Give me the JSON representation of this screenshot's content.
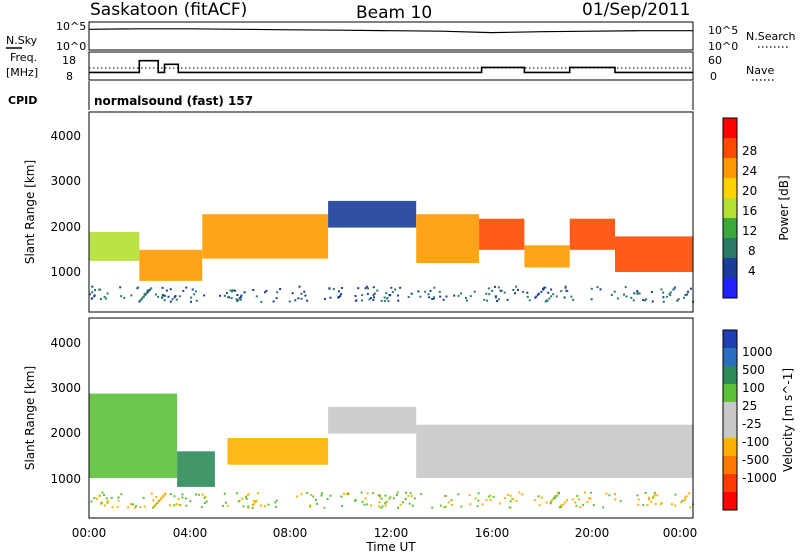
{
  "header": {
    "station": "Saskatoon (fitACF)",
    "beam": "Beam 10",
    "date": "01/Sep/2011"
  },
  "noise_panel": {
    "left_label": "N.Sky",
    "right_label": "N.Search",
    "left_ticks": [
      "10^5",
      "10^0"
    ],
    "right_ticks": [
      "10^5",
      "10^0"
    ]
  },
  "freq_panel": {
    "left_label_1": "Freq.",
    "left_label_2": "[MHz]",
    "left_ticks": [
      "18",
      "8"
    ],
    "right_label": "Nave",
    "right_ticks": [
      "60",
      "0"
    ]
  },
  "cpid_panel": {
    "label": "CPID",
    "text": "normalsound (fast) 157"
  },
  "power_panel": {
    "ylabel": "Slant Range [km]",
    "yticks": [
      "4000",
      "3000",
      "2000",
      "1000"
    ],
    "colorbar_title": "Power [dB]",
    "colorbar_ticks": [
      "28",
      "24",
      "20",
      "16",
      "12",
      "8",
      "4"
    ],
    "colorbar_colors": [
      "#ff0000",
      "#ff4a00",
      "#ff9a00",
      "#ffd200",
      "#b4e034",
      "#3aa83a",
      "#2a7a6a",
      "#1a3d9a",
      "#1f1fff"
    ]
  },
  "velocity_panel": {
    "ylabel": "Slant Range [km]",
    "yticks": [
      "4000",
      "3000",
      "2000",
      "1000"
    ],
    "colorbar_title": "Velocity [m s^-1]",
    "colorbar_ticks": [
      "1000",
      "500",
      "100",
      "25",
      "-25",
      "-100",
      "-500",
      "-1000"
    ],
    "colorbar_colors": [
      "#1f3fb0",
      "#2a6ec0",
      "#2f8a5a",
      "#5cc23a",
      "#c8c8c8",
      "#c8c8c8",
      "#ffb000",
      "#ff7a00",
      "#ff3a00",
      "#ff0000"
    ]
  },
  "time_axis": {
    "xlabel": "Time UT",
    "xticks": [
      "00:00",
      "04:00",
      "08:00",
      "12:00",
      "16:00",
      "20:00",
      "00:00"
    ]
  },
  "chart_data": [
    {
      "type": "line",
      "title": "N.Sky / N.Search noise",
      "xlabel": "Time UT",
      "x_range_hours": [
        0,
        24
      ],
      "ylim_log10": [
        0,
        5
      ],
      "series": [
        {
          "name": "N.Sky",
          "x": [
            0,
            2,
            4,
            6,
            8,
            10,
            12,
            14,
            16,
            18,
            20,
            22,
            24
          ],
          "log10_values": [
            3.9,
            4.0,
            4.0,
            3.9,
            3.8,
            3.7,
            3.6,
            3.5,
            3.2,
            3.4,
            3.5,
            3.6,
            3.6
          ]
        }
      ]
    },
    {
      "type": "line",
      "title": "Freq. [MHz] / Nave",
      "x_range_hours": [
        0,
        24
      ],
      "ylim": [
        8,
        18
      ],
      "series": [
        {
          "name": "Freq.",
          "x": [
            0,
            2.0,
            2.0,
            2.75,
            2.75,
            3.0,
            3.0,
            3.55,
            3.55,
            15.6,
            15.6,
            17.3,
            17.3,
            19.1,
            19.1,
            20.9,
            20.9,
            24
          ],
          "values": [
            10,
            10,
            16.5,
            16.5,
            10,
            10,
            14.5,
            14.5,
            10,
            10,
            12.8,
            12.8,
            10,
            10,
            12.8,
            12.8,
            10,
            10
          ]
        }
      ]
    },
    {
      "type": "heatmap",
      "title": "Power [dB]",
      "xlabel": "Time UT",
      "ylabel": "Slant Range [km]",
      "x_range_hours": [
        0,
        24
      ],
      "ylim": [
        0,
        4500
      ],
      "value_range": [
        3,
        30
      ],
      "echo_regions": [
        {
          "t": [
            0.0,
            2.0
          ],
          "range": [
            1150,
            1800
          ],
          "power": 18
        },
        {
          "t": [
            2.0,
            4.5
          ],
          "range": [
            700,
            1400
          ],
          "power": 22
        },
        {
          "t": [
            4.5,
            9.5
          ],
          "range": [
            1200,
            2200
          ],
          "power": 24
        },
        {
          "t": [
            9.5,
            13.0
          ],
          "range": [
            1900,
            2500
          ],
          "power": 8
        },
        {
          "t": [
            13.0,
            15.5
          ],
          "range": [
            1100,
            2200
          ],
          "power": 22
        },
        {
          "t": [
            15.5,
            17.3
          ],
          "range": [
            1400,
            2100
          ],
          "power": 28
        },
        {
          "t": [
            17.3,
            19.1
          ],
          "range": [
            1000,
            1500
          ],
          "power": 22
        },
        {
          "t": [
            19.1,
            20.9
          ],
          "range": [
            1400,
            2100
          ],
          "power": 28
        },
        {
          "t": [
            20.9,
            24.0
          ],
          "range": [
            900,
            1700
          ],
          "power": 26
        }
      ]
    },
    {
      "type": "heatmap",
      "title": "Velocity [m s^-1]",
      "xlabel": "Time UT",
      "ylabel": "Slant Range [km]",
      "x_range_hours": [
        0,
        24
      ],
      "ylim": [
        0,
        4500
      ],
      "value_range": [
        -1000,
        1000
      ],
      "echo_regions": [
        {
          "t": [
            0.0,
            3.5
          ],
          "range": [
            900,
            2800
          ],
          "velocity": 300
        },
        {
          "t": [
            3.5,
            5.0
          ],
          "range": [
            700,
            1500
          ],
          "velocity": 500
        },
        {
          "t": [
            5.5,
            9.5
          ],
          "range": [
            1200,
            1800
          ],
          "velocity": -400
        },
        {
          "t": [
            9.5,
            13.0
          ],
          "range": [
            1900,
            2500
          ],
          "velocity": 0
        },
        {
          "t": [
            13.0,
            24.0
          ],
          "range": [
            900,
            2100
          ],
          "velocity": 0
        }
      ]
    }
  ]
}
